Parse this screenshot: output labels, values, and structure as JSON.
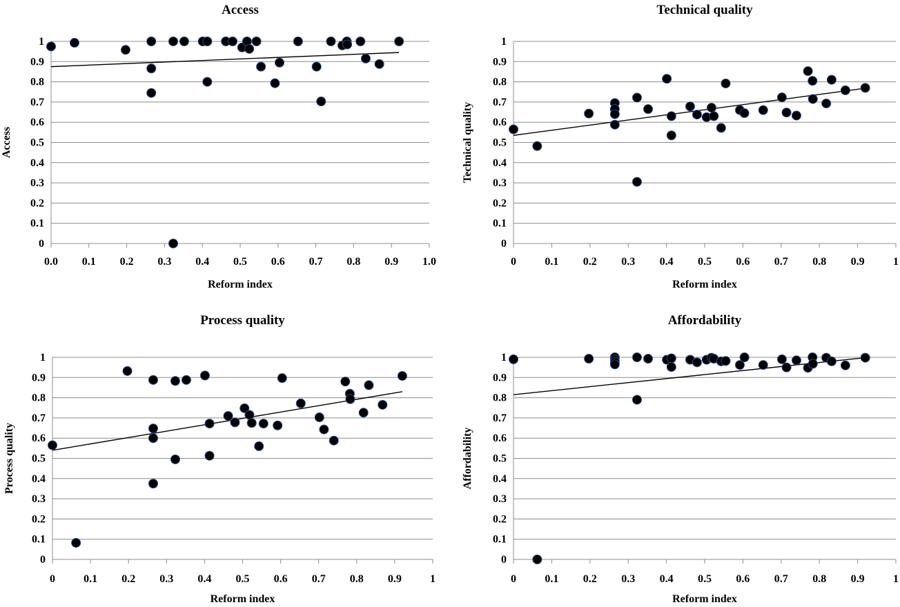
{
  "chart_data": [
    {
      "type": "scatter",
      "title": "Access",
      "xlabel": "Reform index",
      "ylabel": "Access",
      "xlim": [
        0,
        1
      ],
      "ylim": [
        0,
        1
      ],
      "xticks": [
        "0.0",
        "0.1",
        "0.2",
        "0.3",
        "0.4",
        "0.5",
        "0.6",
        "0.7",
        "0.8",
        "0.9",
        "1.0"
      ],
      "yticks": [
        "0",
        "0.1",
        "0.2",
        "0.3",
        "0.4",
        "0.5",
        "0.6",
        "0.7",
        "0.8",
        "0.9",
        "1"
      ],
      "grid": "horizontal",
      "trendline": {
        "x": [
          0,
          0.92
        ],
        "y": [
          0.875,
          0.945
        ]
      },
      "points": [
        {
          "x": 0.0,
          "y": 0.975
        },
        {
          "x": 0.062,
          "y": 0.993
        },
        {
          "x": 0.197,
          "y": 0.958
        },
        {
          "x": 0.265,
          "y": 1.0
        },
        {
          "x": 0.265,
          "y": 0.866
        },
        {
          "x": 0.265,
          "y": 0.745
        },
        {
          "x": 0.323,
          "y": 1.0
        },
        {
          "x": 0.323,
          "y": 0.0
        },
        {
          "x": 0.352,
          "y": 1.0
        },
        {
          "x": 0.401,
          "y": 1.0
        },
        {
          "x": 0.413,
          "y": 1.0
        },
        {
          "x": 0.413,
          "y": 0.8
        },
        {
          "x": 0.462,
          "y": 1.0
        },
        {
          "x": 0.48,
          "y": 1.0
        },
        {
          "x": 0.505,
          "y": 0.97
        },
        {
          "x": 0.518,
          "y": 1.0
        },
        {
          "x": 0.524,
          "y": 0.963
        },
        {
          "x": 0.543,
          "y": 1.0
        },
        {
          "x": 0.555,
          "y": 0.875
        },
        {
          "x": 0.592,
          "y": 0.793
        },
        {
          "x": 0.604,
          "y": 0.895
        },
        {
          "x": 0.653,
          "y": 1.0
        },
        {
          "x": 0.702,
          "y": 0.875
        },
        {
          "x": 0.714,
          "y": 0.703
        },
        {
          "x": 0.74,
          "y": 1.0
        },
        {
          "x": 0.77,
          "y": 0.98
        },
        {
          "x": 0.782,
          "y": 1.0
        },
        {
          "x": 0.783,
          "y": 0.985
        },
        {
          "x": 0.818,
          "y": 1.0
        },
        {
          "x": 0.832,
          "y": 0.915
        },
        {
          "x": 0.868,
          "y": 0.888
        },
        {
          "x": 0.92,
          "y": 1.0
        }
      ]
    },
    {
      "type": "scatter",
      "title": "Technical quality",
      "xlabel": "Reform index",
      "ylabel": "Technical quality",
      "xlim": [
        0,
        1
      ],
      "ylim": [
        0,
        1
      ],
      "xticks": [
        "0",
        "0.1",
        "0.2",
        "0.3",
        "0.4",
        "0.5",
        "0.6",
        "0.7",
        "0.8",
        "0.9",
        "1"
      ],
      "yticks": [
        "0",
        "0.1",
        "0.2",
        "0.3",
        "0.4",
        "0.5",
        "0.6",
        "0.7",
        "0.8",
        "0.9",
        "1"
      ],
      "grid": "horizontal",
      "trendline": {
        "x": [
          0,
          0.92
        ],
        "y": [
          0.535,
          0.768
        ]
      },
      "points": [
        {
          "x": 0.0,
          "y": 0.565
        },
        {
          "x": 0.062,
          "y": 0.482
        },
        {
          "x": 0.197,
          "y": 0.643
        },
        {
          "x": 0.265,
          "y": 0.695
        },
        {
          "x": 0.265,
          "y": 0.665
        },
        {
          "x": 0.265,
          "y": 0.64
        },
        {
          "x": 0.265,
          "y": 0.588
        },
        {
          "x": 0.323,
          "y": 0.722
        },
        {
          "x": 0.323,
          "y": 0.305
        },
        {
          "x": 0.352,
          "y": 0.665
        },
        {
          "x": 0.401,
          "y": 0.815
        },
        {
          "x": 0.413,
          "y": 0.63
        },
        {
          "x": 0.413,
          "y": 0.535
        },
        {
          "x": 0.462,
          "y": 0.678
        },
        {
          "x": 0.48,
          "y": 0.638
        },
        {
          "x": 0.505,
          "y": 0.625
        },
        {
          "x": 0.518,
          "y": 0.672
        },
        {
          "x": 0.524,
          "y": 0.63
        },
        {
          "x": 0.543,
          "y": 0.572
        },
        {
          "x": 0.555,
          "y": 0.792
        },
        {
          "x": 0.592,
          "y": 0.66
        },
        {
          "x": 0.604,
          "y": 0.645
        },
        {
          "x": 0.653,
          "y": 0.66
        },
        {
          "x": 0.702,
          "y": 0.723
        },
        {
          "x": 0.714,
          "y": 0.648
        },
        {
          "x": 0.74,
          "y": 0.633
        },
        {
          "x": 0.77,
          "y": 0.853
        },
        {
          "x": 0.782,
          "y": 0.805
        },
        {
          "x": 0.783,
          "y": 0.715
        },
        {
          "x": 0.818,
          "y": 0.693
        },
        {
          "x": 0.832,
          "y": 0.81
        },
        {
          "x": 0.868,
          "y": 0.758
        },
        {
          "x": 0.92,
          "y": 0.77
        }
      ]
    },
    {
      "type": "scatter",
      "title": "Process quality",
      "xlabel": "Reform index",
      "ylabel": "Process quality",
      "xlim": [
        0,
        1
      ],
      "ylim": [
        0,
        1
      ],
      "xticks": [
        "0",
        "0.1",
        "0.2",
        "0.3",
        "0.4",
        "0.5",
        "0.6",
        "0.7",
        "0.8",
        "0.9",
        "1"
      ],
      "yticks": [
        "0",
        "0.1",
        "0.2",
        "0.3",
        "0.4",
        "0.5",
        "0.6",
        "0.7",
        "0.8",
        "0.9",
        "1"
      ],
      "grid": "horizontal",
      "trendline": {
        "x": [
          0,
          0.92
        ],
        "y": [
          0.54,
          0.83
        ]
      },
      "points": [
        {
          "x": 0.0,
          "y": 0.565
        },
        {
          "x": 0.062,
          "y": 0.082
        },
        {
          "x": 0.197,
          "y": 0.932
        },
        {
          "x": 0.265,
          "y": 0.888
        },
        {
          "x": 0.265,
          "y": 0.648
        },
        {
          "x": 0.265,
          "y": 0.6
        },
        {
          "x": 0.265,
          "y": 0.375
        },
        {
          "x": 0.323,
          "y": 0.883
        },
        {
          "x": 0.323,
          "y": 0.495
        },
        {
          "x": 0.352,
          "y": 0.888
        },
        {
          "x": 0.401,
          "y": 0.91
        },
        {
          "x": 0.413,
          "y": 0.672
        },
        {
          "x": 0.413,
          "y": 0.513
        },
        {
          "x": 0.462,
          "y": 0.71
        },
        {
          "x": 0.48,
          "y": 0.678
        },
        {
          "x": 0.505,
          "y": 0.748
        },
        {
          "x": 0.518,
          "y": 0.715
        },
        {
          "x": 0.524,
          "y": 0.675
        },
        {
          "x": 0.543,
          "y": 0.56
        },
        {
          "x": 0.555,
          "y": 0.672
        },
        {
          "x": 0.592,
          "y": 0.663
        },
        {
          "x": 0.604,
          "y": 0.897
        },
        {
          "x": 0.653,
          "y": 0.772
        },
        {
          "x": 0.702,
          "y": 0.703
        },
        {
          "x": 0.714,
          "y": 0.643
        },
        {
          "x": 0.74,
          "y": 0.588
        },
        {
          "x": 0.77,
          "y": 0.88
        },
        {
          "x": 0.782,
          "y": 0.82
        },
        {
          "x": 0.783,
          "y": 0.793
        },
        {
          "x": 0.818,
          "y": 0.726
        },
        {
          "x": 0.832,
          "y": 0.862
        },
        {
          "x": 0.868,
          "y": 0.765
        },
        {
          "x": 0.92,
          "y": 0.908
        }
      ]
    },
    {
      "type": "scatter",
      "title": "Affordability",
      "xlabel": "Reform index",
      "ylabel": "Affordability",
      "xlim": [
        0,
        1
      ],
      "ylim": [
        0,
        1
      ],
      "xticks": [
        "0",
        "0.1",
        "0.2",
        "0.3",
        "0.4",
        "0.5",
        "0.6",
        "0.7",
        "0.8",
        "0.9",
        "1"
      ],
      "yticks": [
        "0",
        "0.1",
        "0.2",
        "0.3",
        "0.4",
        "0.5",
        "0.6",
        "0.7",
        "0.8",
        "0.9",
        "1"
      ],
      "grid": "horizontal",
      "trendline": {
        "x": [
          0,
          0.92
        ],
        "y": [
          0.815,
          0.998
        ]
      },
      "points": [
        {
          "x": 0.0,
          "y": 0.99
        },
        {
          "x": 0.062,
          "y": 0.0
        },
        {
          "x": 0.197,
          "y": 0.993
        },
        {
          "x": 0.265,
          "y": 1.0
        },
        {
          "x": 0.265,
          "y": 0.99
        },
        {
          "x": 0.265,
          "y": 0.978
        },
        {
          "x": 0.265,
          "y": 0.965
        },
        {
          "x": 0.323,
          "y": 1.0
        },
        {
          "x": 0.323,
          "y": 0.79
        },
        {
          "x": 0.352,
          "y": 0.993
        },
        {
          "x": 0.401,
          "y": 0.988
        },
        {
          "x": 0.413,
          "y": 0.995
        },
        {
          "x": 0.413,
          "y": 0.952
        },
        {
          "x": 0.462,
          "y": 0.988
        },
        {
          "x": 0.48,
          "y": 0.975
        },
        {
          "x": 0.505,
          "y": 0.988
        },
        {
          "x": 0.518,
          "y": 0.998
        },
        {
          "x": 0.524,
          "y": 0.993
        },
        {
          "x": 0.543,
          "y": 0.98
        },
        {
          "x": 0.555,
          "y": 0.982
        },
        {
          "x": 0.592,
          "y": 0.962
        },
        {
          "x": 0.604,
          "y": 1.0
        },
        {
          "x": 0.653,
          "y": 0.962
        },
        {
          "x": 0.702,
          "y": 0.99
        },
        {
          "x": 0.714,
          "y": 0.95
        },
        {
          "x": 0.74,
          "y": 0.985
        },
        {
          "x": 0.77,
          "y": 0.948
        },
        {
          "x": 0.782,
          "y": 1.0
        },
        {
          "x": 0.783,
          "y": 0.968
        },
        {
          "x": 0.818,
          "y": 0.998
        },
        {
          "x": 0.832,
          "y": 0.98
        },
        {
          "x": 0.868,
          "y": 0.96
        },
        {
          "x": 0.92,
          "y": 0.998
        }
      ]
    }
  ]
}
